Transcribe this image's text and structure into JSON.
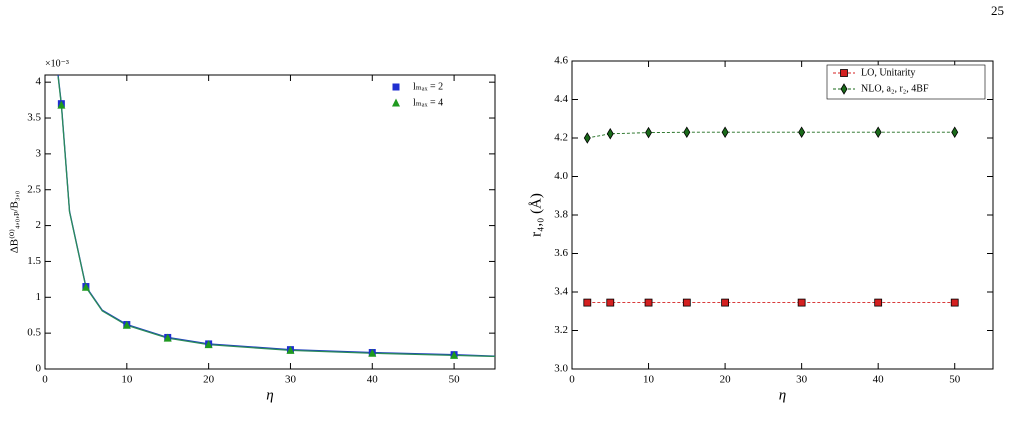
{
  "page_number": "25",
  "chart_data": [
    {
      "type": "scatter",
      "x_label": "η",
      "y_label": "ΔB⁽⁰⁾₄,₀,ₚ/B₃,₀",
      "y_multiplier": "×10⁻³",
      "x": [
        2,
        5,
        10,
        15,
        20,
        30,
        40,
        50
      ],
      "series": [
        {
          "name": "lₘₐₓ = 2",
          "color": "#1f2fd0",
          "marker": "square",
          "values": [
            3.7,
            1.15,
            0.62,
            0.44,
            0.35,
            0.27,
            0.23,
            0.2
          ]
        },
        {
          "name": "lₘₐₓ = 4",
          "color": "#1f9a1f",
          "marker": "triangle",
          "values": [
            3.68,
            1.14,
            0.61,
            0.43,
            0.34,
            0.26,
            0.22,
            0.19
          ]
        }
      ],
      "fit_curves": [
        {
          "color": "#1f3fbf",
          "x": [
            1.6,
            2,
            3,
            5,
            7,
            10,
            15,
            20,
            30,
            40,
            50,
            55
          ],
          "y": [
            4.1,
            3.7,
            2.2,
            1.15,
            0.82,
            0.62,
            0.44,
            0.35,
            0.27,
            0.23,
            0.2,
            0.18
          ]
        },
        {
          "color": "#2a8a5a",
          "x": [
            1.6,
            2,
            3,
            5,
            7,
            10,
            15,
            20,
            30,
            40,
            50,
            55
          ],
          "y": [
            4.08,
            3.68,
            2.19,
            1.14,
            0.81,
            0.61,
            0.43,
            0.34,
            0.26,
            0.22,
            0.19,
            0.175
          ]
        }
      ],
      "xlim": [
        0,
        55
      ],
      "xticks": [
        0,
        10,
        20,
        30,
        40,
        50
      ],
      "ylim": [
        0,
        4.1
      ],
      "yticks": [
        0,
        0.5,
        1,
        1.5,
        2,
        2.5,
        3,
        3.5,
        4
      ],
      "legend": "upper right"
    },
    {
      "type": "line",
      "x_label": "η",
      "y_label": "r₄,₀ (Å)",
      "x": [
        2,
        5,
        10,
        15,
        20,
        30,
        40,
        50
      ],
      "series": [
        {
          "name": "LO, Unitarity",
          "color": "#d42020",
          "marker": "square",
          "values": [
            3.345,
            3.345,
            3.345,
            3.345,
            3.345,
            3.345,
            3.345,
            3.345
          ]
        },
        {
          "name": "NLO, a₂, r₂, 4BF",
          "color": "#1a6a1a",
          "marker": "diamond",
          "values": [
            4.2,
            4.222,
            4.228,
            4.23,
            4.23,
            4.23,
            4.23,
            4.23
          ]
        }
      ],
      "xlim": [
        0,
        55
      ],
      "xticks": [
        0,
        10,
        20,
        30,
        40,
        50
      ],
      "ylim": [
        3,
        4.6
      ],
      "yticks": [
        {
          "value": 3,
          "label": "3.0"
        },
        3.2,
        3.4,
        3.6,
        3.8,
        {
          "value": 4,
          "label": "4.0"
        },
        4.2,
        4.4,
        4.6
      ],
      "legend": "upper right"
    }
  ]
}
